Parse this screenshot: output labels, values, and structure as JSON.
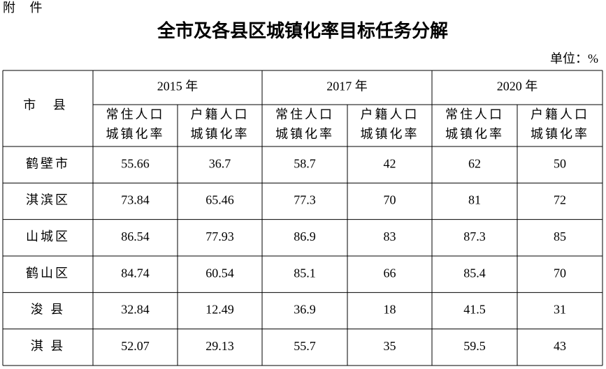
{
  "header": {
    "attachment": "附 件",
    "title": "全市及各县区城镇化率目标任务分解",
    "unit": "单位：%"
  },
  "table": {
    "corner": "市 县",
    "years": [
      "2015 年",
      "2017 年",
      "2020 年"
    ],
    "columns": [
      [
        "常住人口",
        "城镇化率"
      ],
      [
        "户籍人口",
        "城镇化率"
      ],
      [
        "常住人口",
        "城镇化率"
      ],
      [
        "户籍人口",
        "城镇化率"
      ],
      [
        "常住人口",
        "城镇化率"
      ],
      [
        "户籍人口",
        "城镇化率"
      ]
    ],
    "rows": [
      {
        "name": "鹤壁市",
        "values": [
          55.66,
          36.7,
          58.7,
          42,
          62,
          50
        ]
      },
      {
        "name": "淇滨区",
        "values": [
          73.84,
          65.46,
          77.3,
          70,
          81,
          72
        ]
      },
      {
        "name": "山城区",
        "values": [
          86.54,
          77.93,
          86.9,
          83,
          87.3,
          85
        ]
      },
      {
        "name": "鹤山区",
        "values": [
          84.74,
          60.54,
          85.1,
          66,
          85.4,
          70
        ]
      },
      {
        "name": "浚 县",
        "values": [
          32.84,
          12.49,
          36.9,
          18,
          41.5,
          31
        ]
      },
      {
        "name": "淇 县",
        "values": [
          52.07,
          29.13,
          55.7,
          35,
          59.5,
          43
        ]
      }
    ]
  }
}
